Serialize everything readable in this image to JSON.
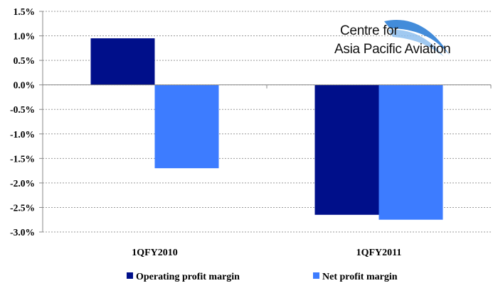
{
  "chart_data": {
    "type": "bar",
    "categories": [
      "1QFY2010",
      "1QFY2011"
    ],
    "series": [
      {
        "name": "Operating profit margin",
        "values": [
          0.95,
          -2.65
        ],
        "color": "#000f8a"
      },
      {
        "name": "Net profit margin",
        "values": [
          -1.7,
          -2.75
        ],
        "color": "#3d7cff"
      }
    ],
    "y_ticks": [
      "1.5%",
      "1.0%",
      "0.5%",
      "0.0%",
      "-0.5%",
      "-1.0%",
      "-1.5%",
      "-2.0%",
      "-2.5%",
      "-3.0%"
    ],
    "ylim": [
      -3.0,
      1.5
    ],
    "grid": "dotted horizontal",
    "legend_position": "bottom"
  },
  "logo": {
    "line1": "Centre for",
    "line2": "Asia Pacific Aviation",
    "accent_color": "#2f7fd6"
  }
}
